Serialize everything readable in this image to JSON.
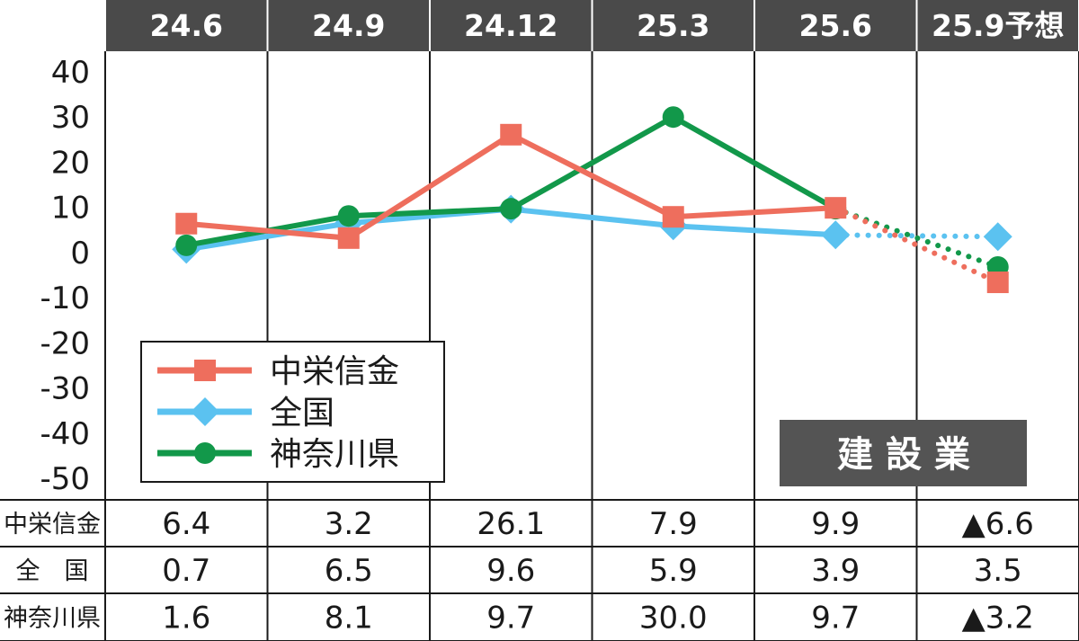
{
  "chart_data": {
    "type": "line",
    "categories": [
      "24.6",
      "24.9",
      "24.12",
      "25.3",
      "25.6",
      "25.9予想"
    ],
    "ylim": [
      -50,
      40
    ],
    "yticks": [
      "40",
      "30",
      "20",
      "10",
      "0",
      "-10",
      "-20",
      "-30",
      "-40",
      "-50"
    ],
    "ytick_values": [
      40,
      30,
      20,
      10,
      0,
      -10,
      -20,
      -30,
      -40,
      -50
    ],
    "grid": "vertical",
    "legend_position": "bottom-left",
    "badge": "建設業",
    "series": [
      {
        "name": "中栄信金",
        "table_label": "中栄信金",
        "values": [
          6.4,
          3.2,
          26.1,
          7.9,
          9.9,
          -6.6
        ],
        "display": [
          "6.4",
          "3.2",
          "26.1",
          "7.9",
          "9.9",
          "▲6.6"
        ],
        "color": "#ee6e5d",
        "marker": "square"
      },
      {
        "name": "全国",
        "table_label": "全　国",
        "values": [
          0.7,
          6.5,
          9.6,
          5.9,
          3.9,
          3.5
        ],
        "display": [
          "0.7",
          "6.5",
          "9.6",
          "5.9",
          "3.9",
          "3.5"
        ],
        "color": "#5bc2f0",
        "marker": "diamond"
      },
      {
        "name": "神奈川県",
        "table_label": "神奈川県",
        "values": [
          1.6,
          8.1,
          9.7,
          30.0,
          9.7,
          -3.2
        ],
        "display": [
          "1.6",
          "8.1",
          "9.7",
          "30.0",
          "9.7",
          "▲3.2"
        ],
        "color": "#12984a",
        "marker": "circle"
      }
    ],
    "forecast_last_point": true
  },
  "colors": {
    "header_bg": "#4a4a4a",
    "badge_bg": "#545454",
    "grid": "#1a1a1a"
  }
}
